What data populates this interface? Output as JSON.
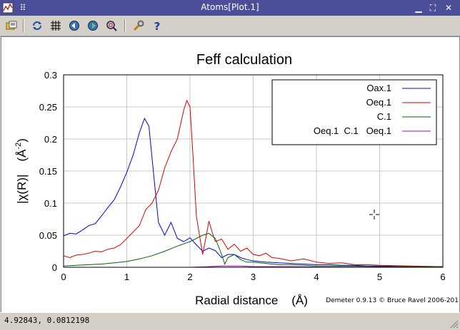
{
  "window": {
    "title": "Atoms[Plot.1]"
  },
  "toolbar": [
    {
      "name": "open-icon"
    },
    {
      "name": "refresh-icon"
    },
    {
      "name": "grid-icon"
    },
    {
      "name": "zoom-back-icon"
    },
    {
      "name": "zoom-forward-icon"
    },
    {
      "name": "zoom-icon"
    },
    {
      "name": "settings-icon"
    },
    {
      "name": "help-icon"
    }
  ],
  "status": {
    "coords": "4.92843, 0.0812198"
  },
  "footer": {
    "credit": "Demeter 0.9.13 © Bruce Ravel 2006-201"
  },
  "chart_data": {
    "type": "line",
    "title": "Feff calculation",
    "xlabel": "Radial distance    (Å)",
    "ylabel_main": "|χ(R)|",
    "ylabel_unit": "(Å",
    "ylabel_exp": "-2",
    "ylabel_close": ")",
    "xlim": [
      0,
      6
    ],
    "ylim": [
      0,
      0.3
    ],
    "xticks": [
      "0",
      "1",
      "2",
      "3",
      "4",
      "5",
      "6"
    ],
    "yticks": [
      "0",
      "0.05",
      "0.1",
      "0.15",
      "0.2",
      "0.25",
      "0.3"
    ],
    "grid": true,
    "legend_position": "top-right",
    "colors": {
      "Oax.1": "#0000dd",
      "Oeq.1": "#dd0000",
      "C.1": "#006600",
      "Oeq.1  C.1   Oeq.1": "#aa00aa"
    },
    "series": [
      {
        "name": "Oax.1",
        "x": [
          0,
          0.1,
          0.2,
          0.3,
          0.4,
          0.5,
          0.6,
          0.7,
          0.8,
          0.9,
          1.0,
          1.1,
          1.2,
          1.28,
          1.35,
          1.4,
          1.5,
          1.6,
          1.7,
          1.8,
          1.9,
          2.0,
          2.1,
          2.2,
          2.3,
          2.4,
          2.5,
          2.6,
          2.7,
          2.8,
          2.9,
          3.0,
          3.2,
          3.4,
          3.6,
          3.8,
          4.0,
          4.2,
          4.4,
          4.6,
          4.8,
          5.0,
          5.5,
          6.0
        ],
        "y": [
          0.049,
          0.053,
          0.052,
          0.058,
          0.065,
          0.068,
          0.08,
          0.093,
          0.105,
          0.125,
          0.148,
          0.175,
          0.21,
          0.232,
          0.22,
          0.17,
          0.07,
          0.05,
          0.07,
          0.045,
          0.04,
          0.046,
          0.035,
          0.025,
          0.03,
          0.026,
          0.015,
          0.02,
          0.02,
          0.015,
          0.012,
          0.01,
          0.008,
          0.007,
          0.006,
          0.005,
          0.004,
          0.004,
          0.003,
          0.003,
          0.002,
          0.002,
          0.001,
          0.001
        ]
      },
      {
        "name": "Oeq.1",
        "x": [
          0,
          0.1,
          0.2,
          0.3,
          0.4,
          0.5,
          0.6,
          0.7,
          0.8,
          0.9,
          1.0,
          1.1,
          1.2,
          1.3,
          1.4,
          1.5,
          1.6,
          1.7,
          1.8,
          1.9,
          1.95,
          2.0,
          2.05,
          2.1,
          2.2,
          2.25,
          2.3,
          2.35,
          2.4,
          2.5,
          2.6,
          2.7,
          2.8,
          2.9,
          3.0,
          3.1,
          3.2,
          3.3,
          3.4,
          3.6,
          3.8,
          4.0,
          4.2,
          4.4,
          4.6,
          4.8,
          5.0,
          5.5,
          6.0
        ],
        "y": [
          0.018,
          0.015,
          0.019,
          0.02,
          0.022,
          0.025,
          0.024,
          0.028,
          0.03,
          0.035,
          0.045,
          0.055,
          0.065,
          0.09,
          0.1,
          0.12,
          0.155,
          0.18,
          0.2,
          0.245,
          0.26,
          0.25,
          0.17,
          0.08,
          0.02,
          0.045,
          0.072,
          0.055,
          0.04,
          0.044,
          0.028,
          0.036,
          0.025,
          0.03,
          0.02,
          0.018,
          0.022,
          0.015,
          0.014,
          0.01,
          0.013,
          0.008,
          0.006,
          0.007,
          0.004,
          0.004,
          0.003,
          0.002,
          0.001
        ]
      },
      {
        "name": "C.1",
        "x": [
          0,
          0.2,
          0.4,
          0.6,
          0.8,
          1.0,
          1.2,
          1.4,
          1.6,
          1.8,
          2.0,
          2.1,
          2.2,
          2.3,
          2.4,
          2.5,
          2.55,
          2.6,
          2.7,
          2.8,
          2.9,
          3.0,
          3.2,
          3.4,
          3.6,
          3.8,
          4.0,
          4.5,
          5.0,
          6.0
        ],
        "y": [
          0.002,
          0.003,
          0.004,
          0.005,
          0.007,
          0.009,
          0.013,
          0.018,
          0.025,
          0.033,
          0.04,
          0.045,
          0.05,
          0.053,
          0.045,
          0.02,
          0.005,
          0.015,
          0.02,
          0.012,
          0.008,
          0.008,
          0.006,
          0.004,
          0.004,
          0.003,
          0.002,
          0.002,
          0.001,
          0.001
        ]
      },
      {
        "name": "Oeq.1  C.1   Oeq.1",
        "x": [
          0,
          1.0,
          2.0,
          2.3,
          2.5,
          2.8,
          3.0,
          3.2,
          3.4,
          3.6,
          4.0,
          4.5,
          5.0,
          6.0
        ],
        "y": [
          0,
          0,
          0,
          0.001,
          0.002,
          0.002,
          0.001,
          0.001,
          0.001,
          0.001,
          0.0005,
          0.0003,
          0.0002,
          0
        ]
      }
    ]
  }
}
